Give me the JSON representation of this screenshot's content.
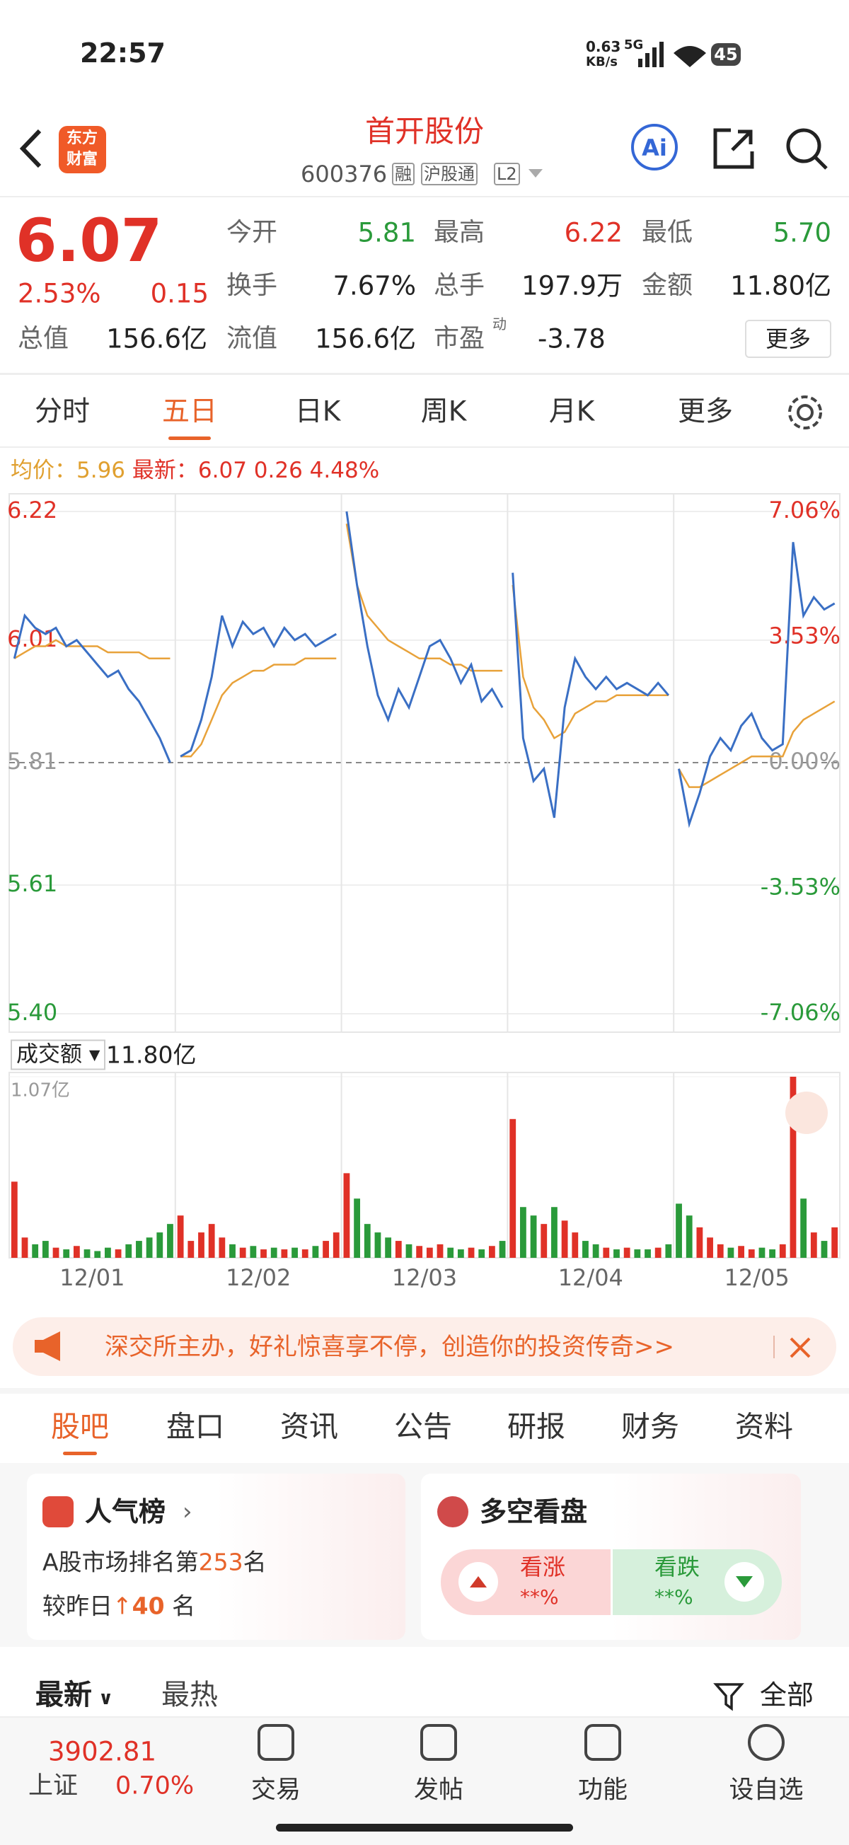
{
  "status_bar": {
    "time": "22:57",
    "net_speed": "0.63",
    "net_unit": "KB/s",
    "network": "5G",
    "battery": "45"
  },
  "header": {
    "logo_lines": [
      "东方",
      "财富"
    ],
    "title": "首开股份",
    "code": "600376",
    "tags": [
      "融",
      "沪股通",
      "L2"
    ],
    "ai": "Ai"
  },
  "quote": {
    "price": "6.07",
    "change_pct": "2.53%",
    "change": "0.15",
    "rows": [
      [
        {
          "label": "今开",
          "value": "5.81",
          "tone": "down"
        },
        {
          "label": "最高",
          "value": "6.22",
          "tone": "up"
        },
        {
          "label": "最低",
          "value": "5.70",
          "tone": "down"
        }
      ],
      [
        {
          "label": "换手",
          "value": "7.67%",
          "info": true
        },
        {
          "label": "总手",
          "value": "197.9万"
        },
        {
          "label": "金额",
          "value": "11.80亿"
        }
      ]
    ],
    "total_cap": {
      "label": "总值",
      "value": "156.6亿"
    },
    "float_cap": {
      "label": "流值",
      "value": "156.6亿"
    },
    "pe": {
      "label": "市盈",
      "sup": "动",
      "value": "-3.78"
    },
    "more": "更多"
  },
  "period_tabs": {
    "items": [
      "分时",
      "五日",
      "日K",
      "周K",
      "月K",
      "更多"
    ],
    "active": 1
  },
  "chart": {
    "type": "line",
    "info": {
      "avg_label": "均价：",
      "avg": "5.96",
      "latest_label": "最新：",
      "latest": "6.07",
      "change": "0.26",
      "change_pct": "4.48%"
    },
    "ylim": [
      5.4,
      6.22
    ],
    "yticks": [
      6.22,
      6.01,
      5.81,
      5.61,
      {
        "value": 5.4,
        "label": "5.40"
      }
    ],
    "y2lim": [
      -7.06,
      7.06
    ],
    "y2ticks": [
      {
        "value": 7.06,
        "label": "7.06%"
      },
      {
        "value": 3.53,
        "label": "3.53%"
      },
      {
        "value": 0,
        "label": "0.00%"
      },
      {
        "value": -3.53,
        "label": "-3.53%"
      },
      {
        "value": -7.06,
        "label": "-7.06%"
      }
    ],
    "volume_label": "成交额",
    "volume_total": "11.80亿",
    "volume_ylim": [
      0,
      1.07
    ],
    "volume_yticks": [
      {
        "value": 1.07,
        "label": "1.07亿"
      }
    ],
    "days": [
      {
        "label": "12/01",
        "price": [
          5.98,
          6.05,
          6.03,
          6.02,
          6.03,
          6.0,
          6.01,
          5.99,
          5.97,
          5.95,
          5.96,
          5.93,
          5.91,
          5.88,
          5.85,
          5.81
        ],
        "avg": [
          5.98,
          5.99,
          6.0,
          6.0,
          6.01,
          6.0,
          6.0,
          6.0,
          6.0,
          5.99,
          5.99,
          5.99,
          5.99,
          5.98,
          5.98,
          5.98
        ],
        "volume": [
          0.45,
          0.12,
          0.08,
          0.1,
          0.06,
          0.05,
          0.07,
          0.05,
          0.04,
          0.06,
          0.05,
          0.08,
          0.1,
          0.12,
          0.15,
          0.2
        ]
      },
      {
        "label": "12/02",
        "price": [
          5.82,
          5.83,
          5.88,
          5.95,
          6.05,
          6.0,
          6.04,
          6.02,
          6.03,
          6.0,
          6.03,
          6.01,
          6.02,
          6.0,
          6.01,
          6.02
        ],
        "avg": [
          5.82,
          5.82,
          5.84,
          5.88,
          5.92,
          5.94,
          5.95,
          5.96,
          5.96,
          5.97,
          5.97,
          5.97,
          5.98,
          5.98,
          5.98,
          5.98
        ],
        "volume": [
          0.25,
          0.1,
          0.15,
          0.2,
          0.12,
          0.08,
          0.06,
          0.07,
          0.05,
          0.06,
          0.05,
          0.06,
          0.05,
          0.07,
          0.1,
          0.15
        ]
      },
      {
        "label": "12/03",
        "price": [
          6.22,
          6.1,
          6.0,
          5.92,
          5.88,
          5.93,
          5.9,
          5.95,
          6.0,
          6.01,
          5.98,
          5.94,
          5.97,
          5.91,
          5.93,
          5.9
        ],
        "avg": [
          6.2,
          6.1,
          6.05,
          6.03,
          6.01,
          6.0,
          5.99,
          5.98,
          5.98,
          5.98,
          5.97,
          5.97,
          5.96,
          5.96,
          5.96,
          5.96
        ],
        "volume": [
          0.5,
          0.35,
          0.2,
          0.15,
          0.12,
          0.1,
          0.08,
          0.07,
          0.06,
          0.08,
          0.06,
          0.05,
          0.06,
          0.05,
          0.07,
          0.1
        ]
      },
      {
        "label": "12/04",
        "price": [
          6.12,
          5.85,
          5.78,
          5.8,
          5.72,
          5.9,
          5.98,
          5.95,
          5.93,
          5.95,
          5.93,
          5.94,
          5.93,
          5.92,
          5.94,
          5.92
        ],
        "avg": [
          6.1,
          5.95,
          5.9,
          5.88,
          5.85,
          5.86,
          5.89,
          5.9,
          5.91,
          5.91,
          5.92,
          5.92,
          5.92,
          5.92,
          5.92,
          5.92
        ],
        "volume": [
          0.82,
          0.3,
          0.25,
          0.2,
          0.3,
          0.22,
          0.15,
          0.1,
          0.08,
          0.06,
          0.05,
          0.06,
          0.05,
          0.05,
          0.06,
          0.08
        ]
      },
      {
        "label": "12/05",
        "price": [
          5.8,
          5.71,
          5.76,
          5.82,
          5.85,
          5.83,
          5.87,
          5.89,
          5.85,
          5.83,
          5.84,
          6.17,
          6.05,
          6.08,
          6.06,
          6.07
        ],
        "avg": [
          5.8,
          5.77,
          5.77,
          5.78,
          5.79,
          5.8,
          5.81,
          5.82,
          5.82,
          5.82,
          5.82,
          5.86,
          5.88,
          5.89,
          5.9,
          5.91
        ],
        "volume": [
          0.32,
          0.25,
          0.18,
          0.12,
          0.08,
          0.06,
          0.07,
          0.05,
          0.06,
          0.05,
          0.08,
          1.07,
          0.35,
          0.15,
          0.1,
          0.18
        ]
      }
    ]
  },
  "banner": {
    "text": "深交所主办，好礼惊喜享不停，创造你的投资传奇>>"
  },
  "section_tabs": {
    "items": [
      "股吧",
      "盘口",
      "资讯",
      "公告",
      "研报",
      "财务",
      "资料"
    ],
    "active": 0
  },
  "cards": {
    "popularity": {
      "title": "人气榜",
      "rank_prefix": "A股市场排名第",
      "rank": "253",
      "rank_suffix": "名",
      "compare_prefix": "较昨日",
      "compare": "40",
      "compare_suffix": "名"
    },
    "sentiment": {
      "title": "多空看盘",
      "bull": "看涨",
      "bull_value": "**%",
      "bear": "看跌",
      "bear_value": "**%"
    }
  },
  "feed": {
    "sort_new": "最新",
    "sort_hot": "最热",
    "filter": "全部"
  },
  "bottom_bar": {
    "index_value": "3902.81",
    "index_name": "上证",
    "index_change": "0.70%",
    "items": [
      "交易",
      "发帖",
      "功能",
      "设自选"
    ]
  }
}
